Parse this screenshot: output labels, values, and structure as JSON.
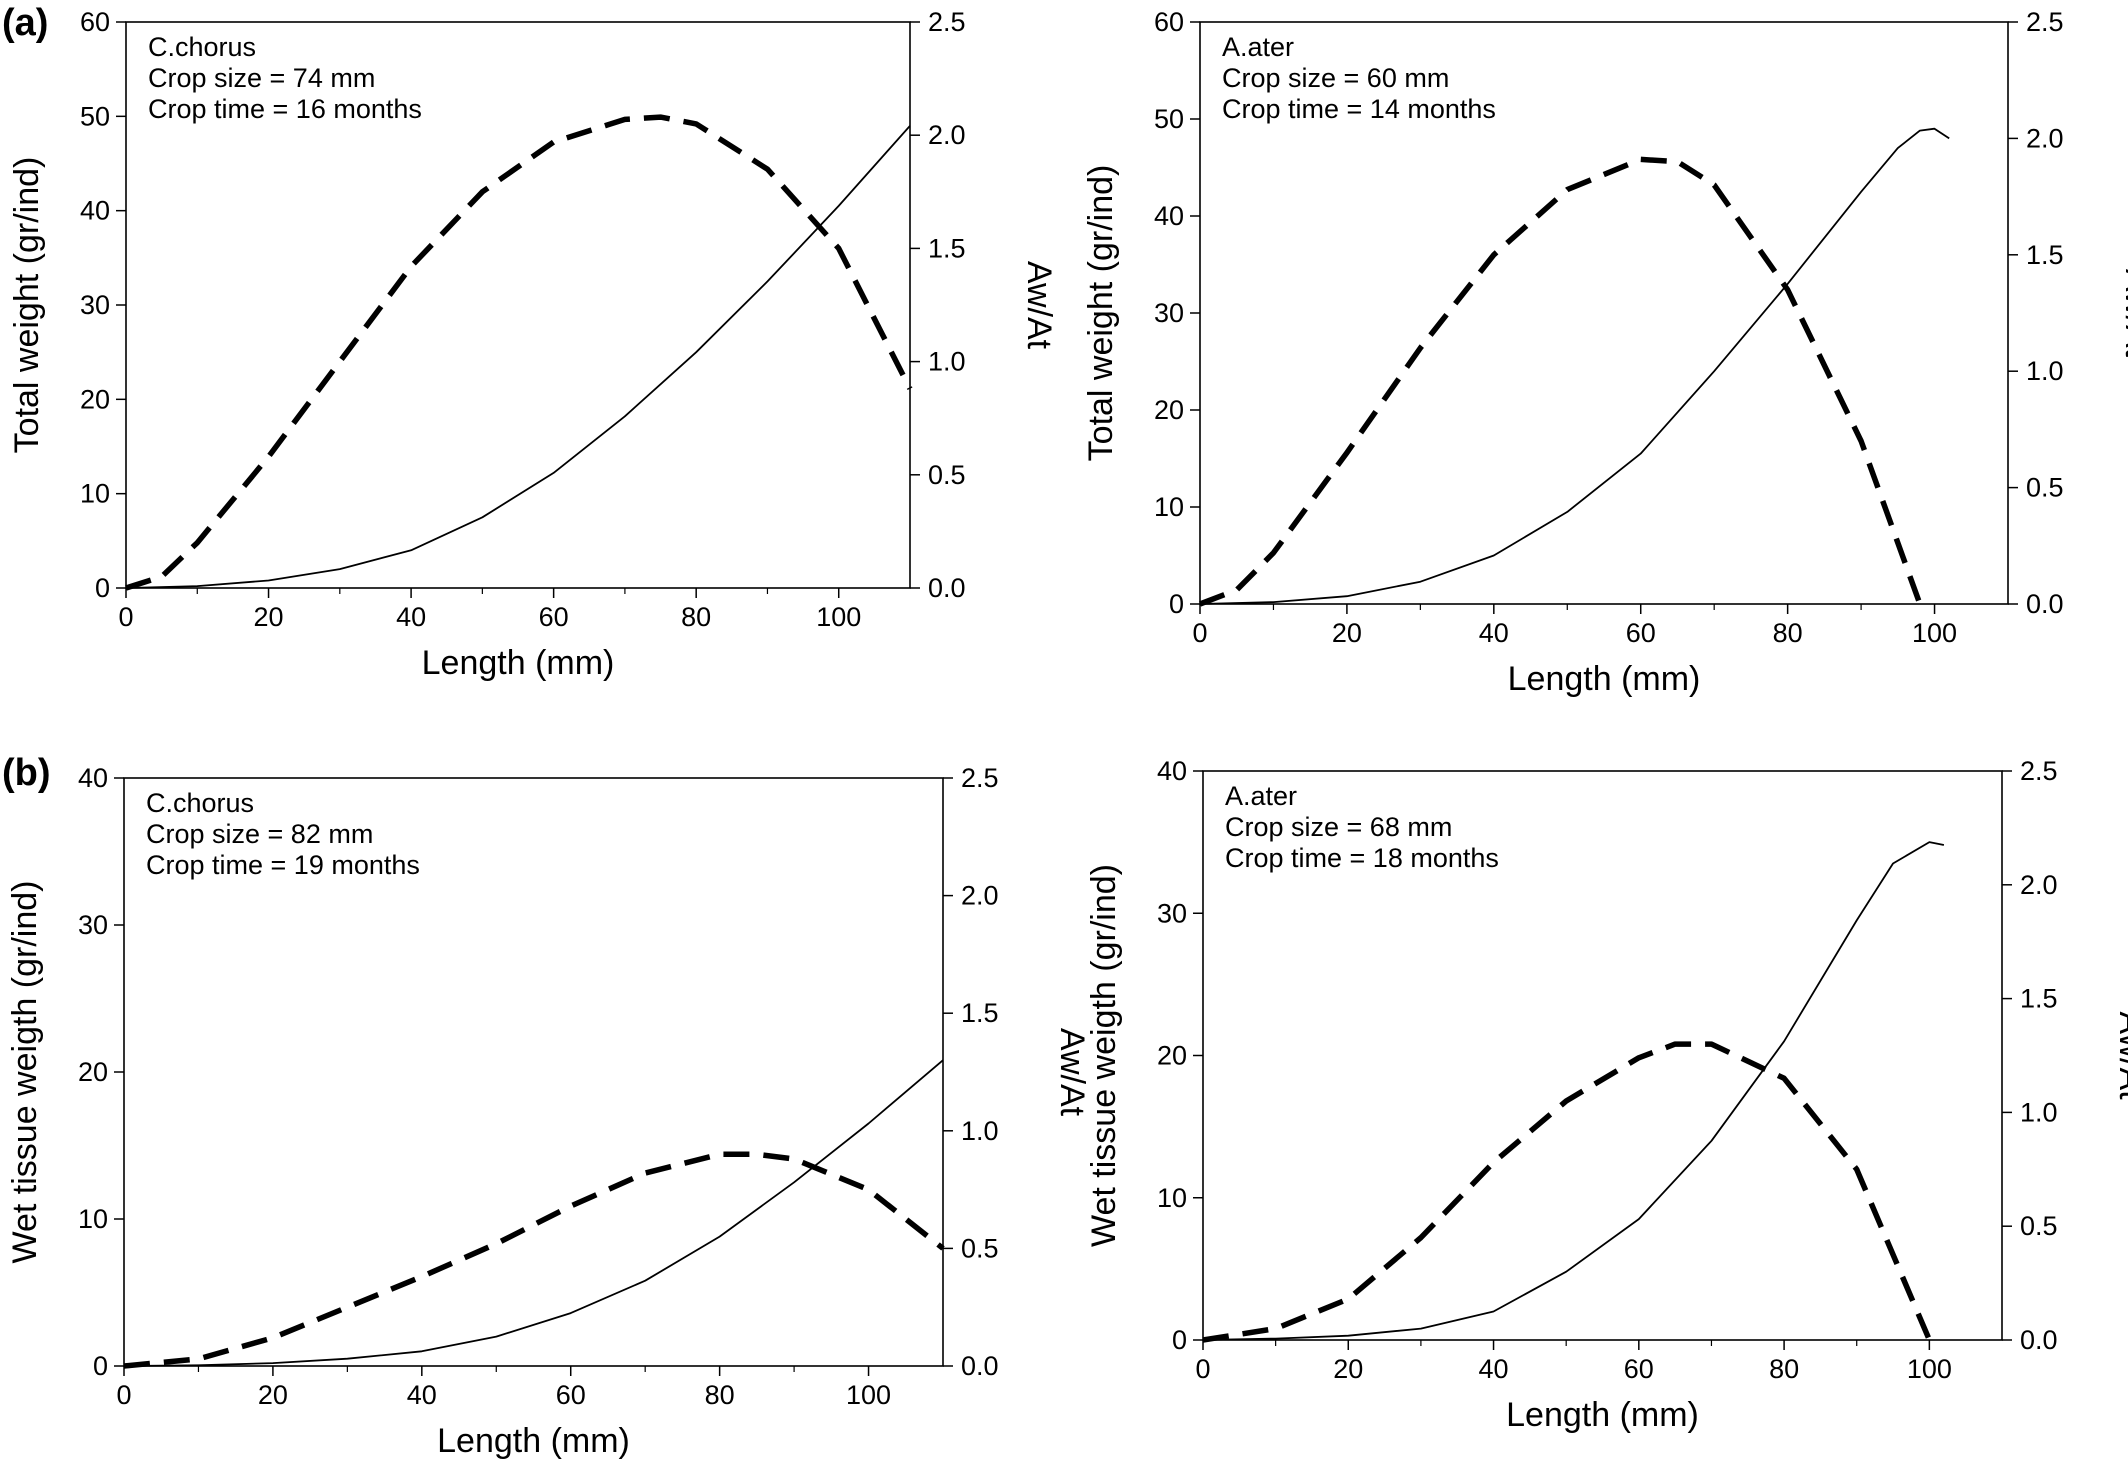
{
  "figure": {
    "panel_labels": [
      "(a)",
      "(b)"
    ]
  },
  "chart_data": [
    {
      "type": "line",
      "panel": "(a)",
      "annotations": [
        "C.chorus",
        "Crop size = 74 mm",
        "Crop time = 16 months"
      ],
      "xlabel": "Length (mm)",
      "ylabel": "Total weight (gr/ind)",
      "y2label": "Aw/At",
      "xlim": [
        0,
        110
      ],
      "ylim": [
        0,
        60
      ],
      "y2lim": [
        0,
        2.5
      ],
      "xticks": [
        "0",
        "20",
        "40",
        "60",
        "80",
        "100"
      ],
      "yticks": [
        "0",
        "10",
        "20",
        "30",
        "40",
        "50",
        "60"
      ],
      "y2ticks": [
        "0.0",
        "0.5",
        "1.0",
        "1.5",
        "2.0",
        "2.5"
      ],
      "series": [
        {
          "axis": "left",
          "style": "solid",
          "x": [
            0,
            10,
            20,
            30,
            40,
            50,
            60,
            70,
            80,
            90,
            100,
            110
          ],
          "y": [
            0,
            0.2,
            0.8,
            2,
            4,
            7.5,
            12.2,
            18.2,
            25,
            32.5,
            40.5,
            49
          ]
        },
        {
          "axis": "right",
          "style": "dashed",
          "x": [
            0,
            5,
            10,
            20,
            30,
            40,
            50,
            60,
            70,
            75,
            80,
            90,
            100,
            110
          ],
          "y": [
            0,
            0.05,
            0.2,
            0.58,
            1.0,
            1.42,
            1.75,
            1.97,
            2.07,
            2.08,
            2.05,
            1.85,
            1.5,
            0.88
          ]
        }
      ]
    },
    {
      "type": "line",
      "panel": "(a)",
      "annotations": [
        "A.ater",
        "Crop size = 60 mm",
        "Crop time = 14 months"
      ],
      "xlabel": "Length (mm)",
      "ylabel": "Total weight (gr/ind)",
      "y2label": "Aw/At",
      "xlim": [
        0,
        110
      ],
      "ylim": [
        0,
        60
      ],
      "y2lim": [
        0,
        2.5
      ],
      "xticks": [
        "0",
        "20",
        "40",
        "60",
        "80",
        "100"
      ],
      "yticks": [
        "0",
        "10",
        "20",
        "30",
        "40",
        "50",
        "60"
      ],
      "y2ticks": [
        "0.0",
        "0.5",
        "1.0",
        "1.5",
        "2.0",
        "2.5"
      ],
      "series": [
        {
          "axis": "left",
          "style": "solid",
          "x": [
            0,
            10,
            20,
            30,
            40,
            50,
            60,
            70,
            80,
            90,
            95,
            98,
            100,
            102
          ],
          "y": [
            0,
            0.2,
            0.8,
            2.3,
            5,
            9.5,
            15.5,
            24,
            33,
            42.5,
            47,
            48.8,
            49,
            48
          ]
        },
        {
          "axis": "right",
          "style": "dashed",
          "x": [
            0,
            5,
            10,
            20,
            30,
            40,
            50,
            60,
            65,
            70,
            80,
            90,
            98
          ],
          "y": [
            0,
            0.06,
            0.22,
            0.65,
            1.1,
            1.5,
            1.78,
            1.91,
            1.9,
            1.8,
            1.35,
            0.7,
            0
          ]
        }
      ]
    },
    {
      "type": "line",
      "panel": "(b)",
      "annotations": [
        "C.chorus",
        "Crop size = 82 mm",
        "Crop time = 19 months"
      ],
      "xlabel": "Length (mm)",
      "ylabel": "Wet tissue weigth (gr/ind)",
      "y2label": "Aw/At",
      "xlim": [
        0,
        110
      ],
      "ylim": [
        0,
        40
      ],
      "y2lim": [
        0,
        2.5
      ],
      "xticks": [
        "0",
        "20",
        "40",
        "60",
        "80",
        "100"
      ],
      "yticks": [
        "0",
        "10",
        "20",
        "30",
        "40"
      ],
      "y2ticks": [
        "0.0",
        "0.5",
        "1.0",
        "1.5",
        "2.0",
        "2.5"
      ],
      "series": [
        {
          "axis": "left",
          "style": "solid",
          "x": [
            0,
            10,
            20,
            30,
            40,
            50,
            60,
            70,
            80,
            90,
            100,
            110
          ],
          "y": [
            0,
            0.05,
            0.2,
            0.5,
            1.0,
            2.0,
            3.6,
            5.8,
            8.8,
            12.5,
            16.5,
            20.8
          ]
        },
        {
          "axis": "right",
          "style": "dashed",
          "x": [
            0,
            10,
            20,
            30,
            40,
            50,
            60,
            70,
            80,
            85,
            90,
            100,
            110
          ],
          "y": [
            0,
            0.03,
            0.12,
            0.25,
            0.38,
            0.52,
            0.68,
            0.82,
            0.9,
            0.9,
            0.88,
            0.75,
            0.5
          ]
        }
      ]
    },
    {
      "type": "line",
      "panel": "(b)",
      "annotations": [
        "A.ater",
        "Crop size = 68 mm",
        "Crop time = 18 months"
      ],
      "xlabel": "Length (mm)",
      "ylabel": "Wet tissue weigth (gr/ind)",
      "y2label": "Aw/At",
      "xlim": [
        0,
        110
      ],
      "ylim": [
        0,
        40
      ],
      "y2lim": [
        0,
        2.5
      ],
      "xticks": [
        "0",
        "20",
        "40",
        "60",
        "80",
        "100"
      ],
      "yticks": [
        "0",
        "10",
        "20",
        "30",
        "40"
      ],
      "y2ticks": [
        "0.0",
        "0.5",
        "1.0",
        "1.5",
        "2.0",
        "2.5"
      ],
      "series": [
        {
          "axis": "left",
          "style": "solid",
          "x": [
            0,
            10,
            20,
            30,
            40,
            50,
            60,
            70,
            80,
            90,
            95,
            100,
            102
          ],
          "y": [
            0,
            0.1,
            0.3,
            0.8,
            2,
            4.8,
            8.5,
            14,
            21,
            29.5,
            33.5,
            35,
            34.8
          ]
        },
        {
          "axis": "right",
          "style": "dashed",
          "x": [
            0,
            10,
            20,
            30,
            40,
            50,
            60,
            65,
            70,
            80,
            90,
            100
          ],
          "y": [
            0,
            0.05,
            0.18,
            0.45,
            0.78,
            1.05,
            1.24,
            1.3,
            1.3,
            1.15,
            0.75,
            0
          ]
        }
      ]
    }
  ]
}
